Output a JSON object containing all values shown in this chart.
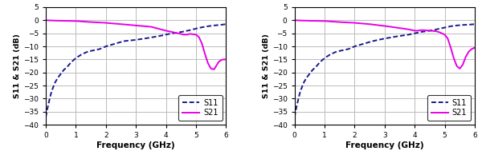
{
  "xlim": [
    0,
    6
  ],
  "ylim": [
    -40,
    5
  ],
  "yticks": [
    5,
    0,
    -5,
    -10,
    -15,
    -20,
    -25,
    -30,
    -35,
    -40
  ],
  "xticks": [
    0,
    1,
    2,
    3,
    4,
    5,
    6
  ],
  "xlabel": "Frequency (GHz)",
  "ylabel": "S11 & S21 (dB)",
  "s11_color": "#1a1a8c",
  "s21_color": "#e600e6",
  "background_color": "#ffffff",
  "grid_color": "#bbbbbb",
  "chart1": {
    "s11_x": [
      0.0,
      0.05,
      0.1,
      0.15,
      0.2,
      0.3,
      0.4,
      0.5,
      0.6,
      0.7,
      0.85,
      1.0,
      1.2,
      1.4,
      1.6,
      1.8,
      2.0,
      2.3,
      2.6,
      3.0,
      3.4,
      3.8,
      4.0,
      4.2,
      4.4,
      4.6,
      4.8,
      5.0,
      5.2,
      5.4,
      5.6,
      5.8,
      6.0
    ],
    "s11_y": [
      -37,
      -34,
      -31.5,
      -29,
      -27,
      -24,
      -22,
      -20.5,
      -19,
      -18,
      -16,
      -14.5,
      -13,
      -12,
      -11.5,
      -11,
      -10,
      -9,
      -8,
      -7.5,
      -6.8,
      -6.0,
      -5.5,
      -5.0,
      -4.7,
      -4.3,
      -3.8,
      -3.2,
      -2.7,
      -2.3,
      -2.0,
      -1.8,
      -1.5
    ],
    "s21_x": [
      0.0,
      0.2,
      0.5,
      1.0,
      1.5,
      2.0,
      2.5,
      3.0,
      3.5,
      4.0,
      4.2,
      4.4,
      4.6,
      4.7,
      4.8,
      5.0,
      5.1,
      5.2,
      5.3,
      5.4,
      5.5,
      5.6,
      5.7,
      5.75,
      5.8,
      5.9,
      6.0
    ],
    "s21_y": [
      0.0,
      -0.1,
      -0.2,
      -0.3,
      -0.7,
      -1.0,
      -1.5,
      -2.0,
      -2.5,
      -4.0,
      -4.5,
      -5.0,
      -5.5,
      -5.5,
      -5.2,
      -5.5,
      -6.5,
      -9.0,
      -13.0,
      -16.5,
      -18.5,
      -18.8,
      -17.0,
      -16.0,
      -15.5,
      -15.0,
      -15.0
    ]
  },
  "chart2": {
    "s11_x": [
      0.0,
      0.05,
      0.1,
      0.15,
      0.2,
      0.3,
      0.4,
      0.5,
      0.6,
      0.7,
      0.85,
      1.0,
      1.2,
      1.4,
      1.6,
      1.8,
      2.0,
      2.3,
      2.6,
      3.0,
      3.4,
      3.8,
      4.0,
      4.2,
      4.4,
      4.6,
      4.8,
      5.0,
      5.2,
      5.4,
      5.6,
      5.8,
      6.0
    ],
    "s11_y": [
      -37,
      -34,
      -31.5,
      -29,
      -27,
      -24,
      -22,
      -20.5,
      -19,
      -18,
      -16,
      -14.5,
      -13,
      -12,
      -11.5,
      -11,
      -10,
      -9,
      -8,
      -7.0,
      -6.2,
      -5.5,
      -5.0,
      -4.5,
      -4.2,
      -3.8,
      -3.3,
      -2.8,
      -2.3,
      -2.0,
      -1.8,
      -1.7,
      -1.5
    ],
    "s21_x": [
      0.0,
      0.2,
      0.5,
      1.0,
      1.5,
      2.0,
      2.5,
      3.0,
      3.2,
      3.5,
      3.8,
      4.0,
      4.1,
      4.2,
      4.3,
      4.5,
      4.7,
      4.8,
      5.0,
      5.1,
      5.2,
      5.3,
      5.4,
      5.5,
      5.6,
      5.7,
      5.8,
      5.9,
      6.0
    ],
    "s21_y": [
      0.0,
      -0.1,
      -0.2,
      -0.3,
      -0.7,
      -1.0,
      -1.5,
      -2.2,
      -2.5,
      -3.0,
      -3.5,
      -4.0,
      -4.0,
      -3.8,
      -3.8,
      -4.0,
      -4.2,
      -4.5,
      -5.5,
      -7.0,
      -10.5,
      -14.5,
      -17.5,
      -18.5,
      -17.0,
      -14.0,
      -12.0,
      -11.0,
      -10.5
    ]
  }
}
